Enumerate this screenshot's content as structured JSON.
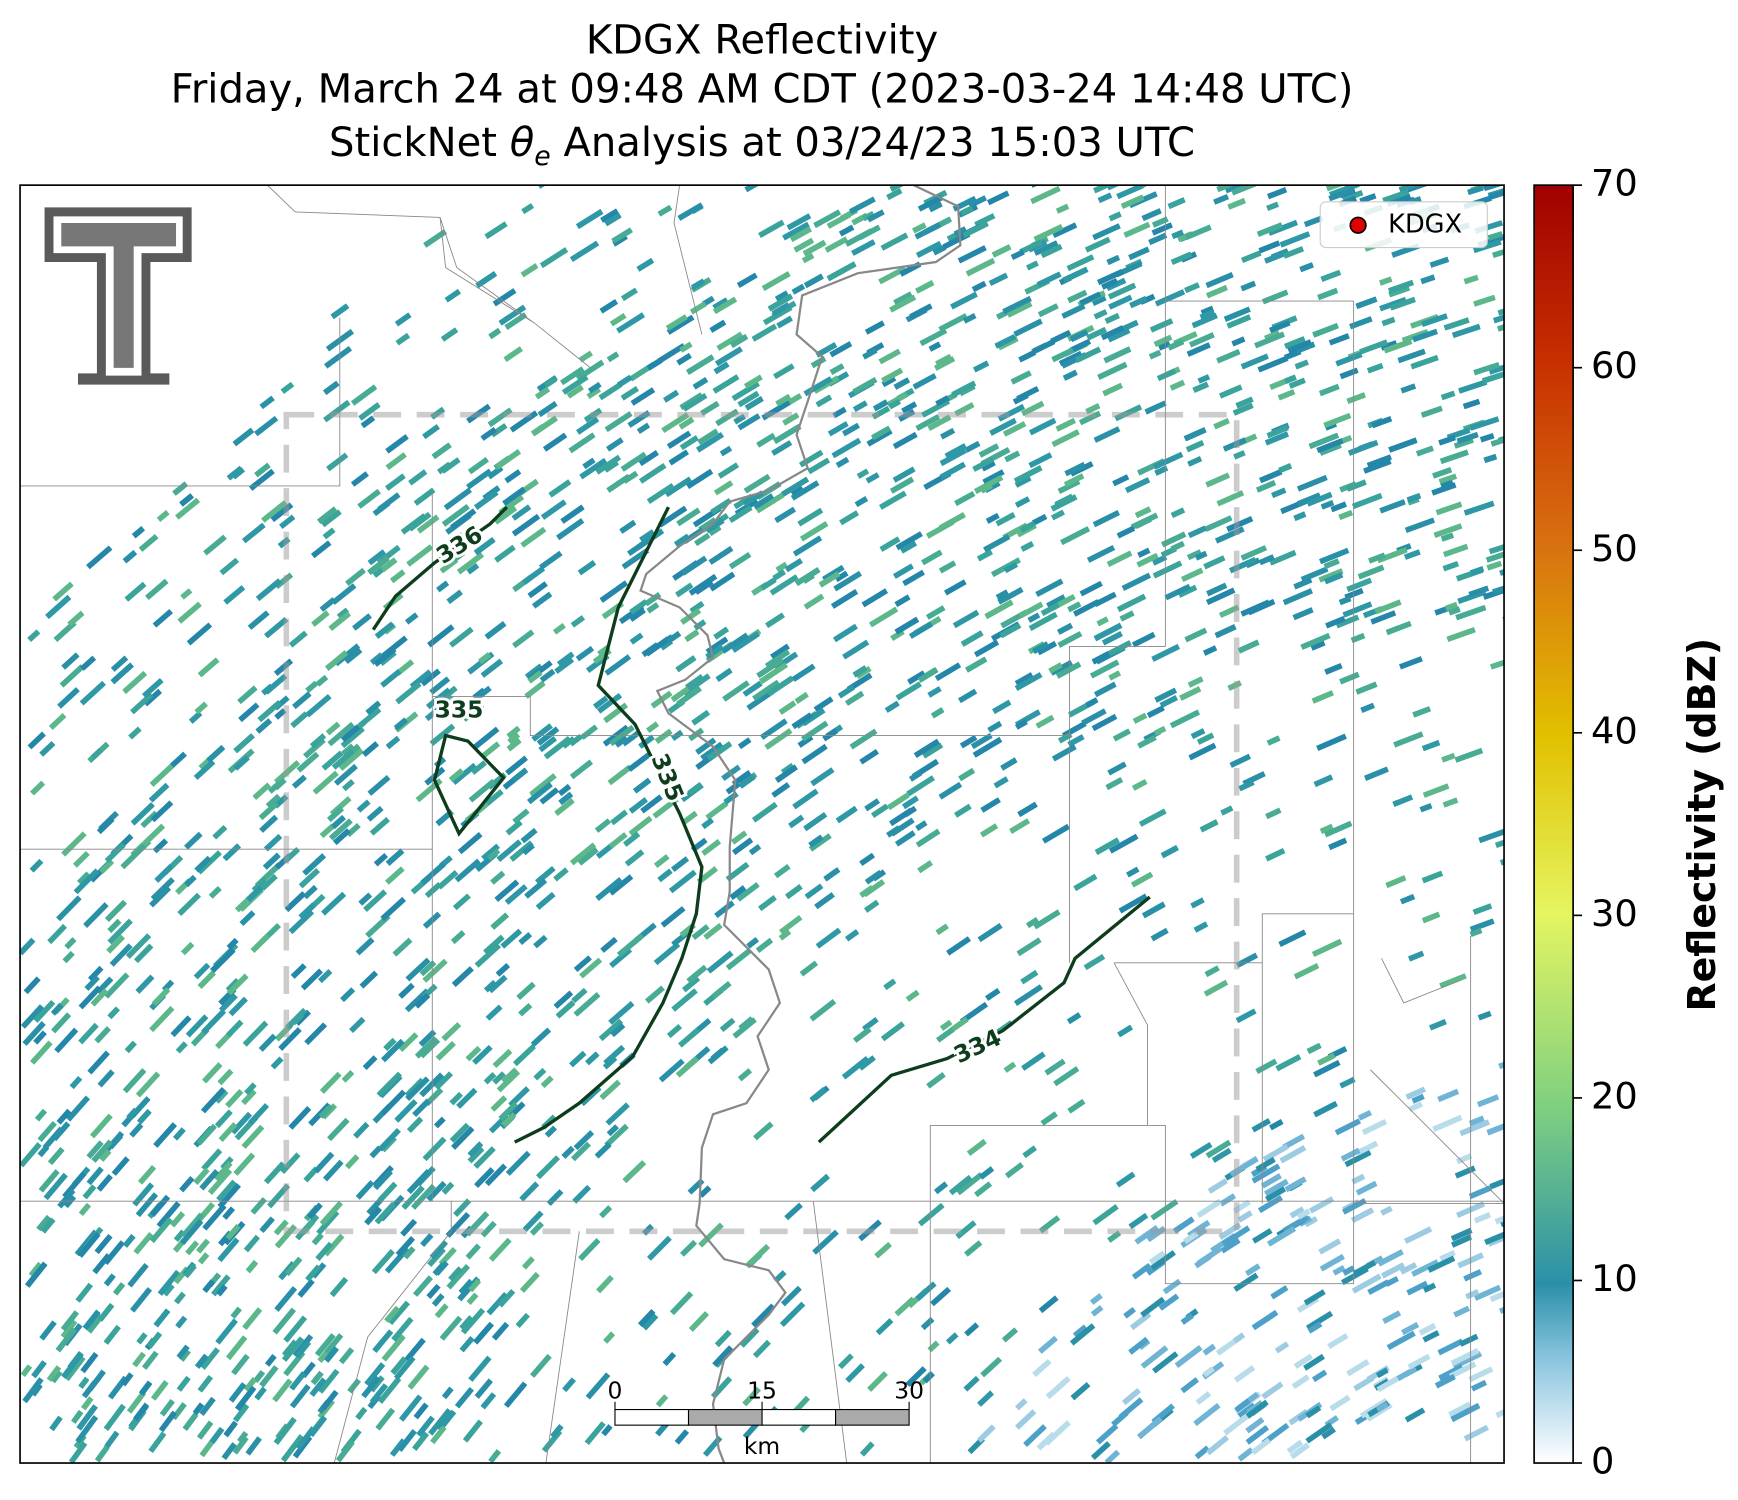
{
  "header": {
    "title_lines": [
      "KDGX Reflectivity",
      "Friday, March 24 at 09:48 AM CDT (2023-03-24 14:48 UTC)"
    ],
    "analysis": {
      "prefix": "StickNet ",
      "symbol": "θ",
      "subscript": "e",
      "suffix": " Analysis at 03/24/23 15:03 UTC"
    }
  },
  "colorbar": {
    "label": "Reflectivity (dBZ)",
    "lim": [
      0,
      70
    ],
    "ticks": [
      0,
      10,
      20,
      30,
      40,
      50,
      60,
      70
    ]
  },
  "legend": {
    "entries": [
      {
        "label": "KDGX",
        "color": "#e00000"
      }
    ]
  },
  "contours": [
    {
      "label": 336
    },
    {
      "label": 335
    },
    {
      "label": 335
    },
    {
      "label": 334
    }
  ],
  "scale_bar": {
    "ticks": [
      0,
      15,
      30
    ],
    "unit": "km"
  }
}
